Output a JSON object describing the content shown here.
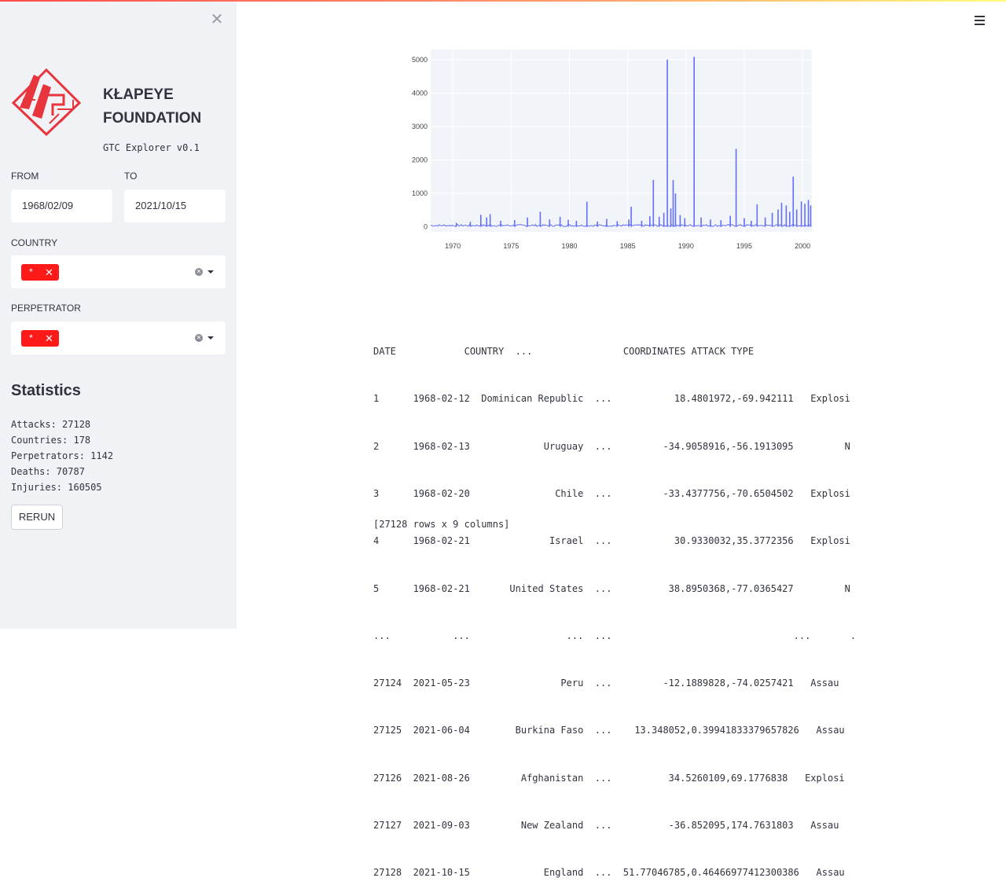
{
  "app": {
    "brand_line1": "KŁAPEYE",
    "brand_line2": "FOUNDATION",
    "version": "GTC Explorer v0.1",
    "accent_color": "#ff4b4b",
    "chip_color": "#ff1a1a",
    "line_color": "#636efa"
  },
  "sidebar": {
    "from_label": "FROM",
    "from_value": "1968/02/09",
    "to_label": "TO",
    "to_value": "2021/10/15",
    "country_label": "COUNTRY",
    "country_chip": "*",
    "perpetrator_label": "PERPETRATOR",
    "perpetrator_chip": "*",
    "chip_remove": "✕",
    "stats_title": "Statistics",
    "stats": [
      "Attacks: 27128",
      "Countries: 178",
      "Perpetrators: 1142",
      "Deaths: 70787",
      "Injuries: 160505"
    ],
    "rerun_label": "RERUN"
  },
  "chart_data": {
    "type": "line",
    "title": "",
    "xlabel": "",
    "ylabel": "",
    "xlim": [
      1968.1,
      2000.8
    ],
    "ylim": [
      -150,
      5300
    ],
    "x_ticks": [
      "1970",
      "1975",
      "1980",
      "1985",
      "1990",
      "1995",
      "2000"
    ],
    "y_ticks": [
      "0",
      "1000",
      "2000",
      "3000",
      "4000",
      "5000"
    ],
    "grid": true,
    "series": [
      {
        "name": "",
        "spikes": [
          {
            "x": 1970.3,
            "y": 120
          },
          {
            "x": 1971.5,
            "y": 150
          },
          {
            "x": 1972.4,
            "y": 360
          },
          {
            "x": 1972.9,
            "y": 280
          },
          {
            "x": 1973.2,
            "y": 380
          },
          {
            "x": 1974.1,
            "y": 180
          },
          {
            "x": 1975.3,
            "y": 200
          },
          {
            "x": 1976.4,
            "y": 280
          },
          {
            "x": 1977.5,
            "y": 450
          },
          {
            "x": 1978.3,
            "y": 220
          },
          {
            "x": 1979.2,
            "y": 300
          },
          {
            "x": 1979.9,
            "y": 210
          },
          {
            "x": 1980.6,
            "y": 180
          },
          {
            "x": 1981.5,
            "y": 750
          },
          {
            "x": 1982.4,
            "y": 160
          },
          {
            "x": 1983.2,
            "y": 240
          },
          {
            "x": 1984.1,
            "y": 170
          },
          {
            "x": 1985.1,
            "y": 220
          },
          {
            "x": 1985.3,
            "y": 600
          },
          {
            "x": 1986.2,
            "y": 180
          },
          {
            "x": 1986.9,
            "y": 320
          },
          {
            "x": 1987.2,
            "y": 1400
          },
          {
            "x": 1987.7,
            "y": 300
          },
          {
            "x": 1988.1,
            "y": 420
          },
          {
            "x": 1988.4,
            "y": 5000
          },
          {
            "x": 1988.7,
            "y": 550
          },
          {
            "x": 1988.9,
            "y": 1400
          },
          {
            "x": 1989.1,
            "y": 1000
          },
          {
            "x": 1989.5,
            "y": 350
          },
          {
            "x": 1989.9,
            "y": 260
          },
          {
            "x": 1990.7,
            "y": 5080
          },
          {
            "x": 1991.3,
            "y": 280
          },
          {
            "x": 1992.1,
            "y": 220
          },
          {
            "x": 1993.0,
            "y": 200
          },
          {
            "x": 1993.8,
            "y": 330
          },
          {
            "x": 1994.3,
            "y": 2330
          },
          {
            "x": 1995.0,
            "y": 260
          },
          {
            "x": 1995.6,
            "y": 180
          },
          {
            "x": 1996.1,
            "y": 670
          },
          {
            "x": 1996.8,
            "y": 280
          },
          {
            "x": 1997.4,
            "y": 420
          },
          {
            "x": 1997.9,
            "y": 520
          },
          {
            "x": 1998.2,
            "y": 720
          },
          {
            "x": 1998.6,
            "y": 640
          },
          {
            "x": 1998.9,
            "y": 450
          },
          {
            "x": 1999.2,
            "y": 1500
          },
          {
            "x": 1999.5,
            "y": 520
          },
          {
            "x": 1999.9,
            "y": 760
          },
          {
            "x": 2000.2,
            "y": 690
          },
          {
            "x": 2000.5,
            "y": 800
          },
          {
            "x": 2000.7,
            "y": 640
          }
        ]
      }
    ]
  },
  "table": {
    "header": "DATE            COUNTRY  ...                COORDINATES ATTACK TYPE",
    "rows": [
      "1      1968-02-12  Dominican Republic  ...           18.4801972,-69.942111   Explosi",
      "2      1968-02-13             Uruguay  ...         -34.9058916,-56.1913095         N",
      "3      1968-02-20               Chile  ...         -33.4377756,-70.6504502   Explosi",
      "4      1968-02-21              Israel  ...           30.9330032,35.3772356   Explosi",
      "5      1968-02-21       United States  ...          38.8950368,-77.0365427         N",
      "...           ...                 ...  ...                                ...       .",
      "27124  2021-05-23                Peru  ...         -12.1889828,-74.0257421   Assau",
      "27125  2021-06-04        Burkina Faso  ...    13.348052,0.39941833379657826   Assau",
      "27126  2021-08-26         Afghanistan  ...          34.5260109,69.1776838   Explosi",
      "27127  2021-09-03         New Zealand  ...          -36.852095,174.7631803   Assau",
      "27128  2021-10-15             England  ...  51.77046785,0.46466977412300386   Assau"
    ],
    "footer": "[27128 rows x 9 columns]"
  }
}
